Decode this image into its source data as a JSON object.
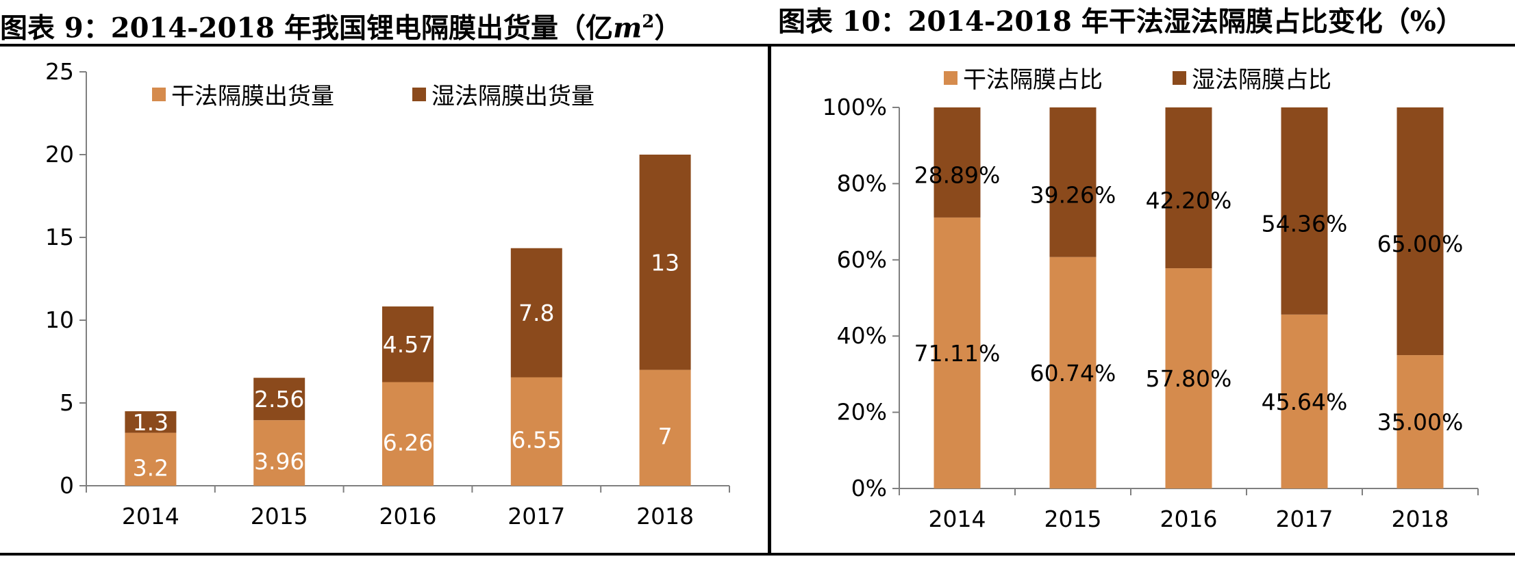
{
  "colors": {
    "dry": "#D58B4D",
    "wet": "#8B4A1C",
    "axis": "#7f7f7f"
  },
  "panels": {
    "left": {
      "title_prefix": "图表 9：2014-2018 年我国锂电隔膜出货量（亿",
      "title_unit": "m",
      "title_sup": "2",
      "title_suffix": "）"
    },
    "right": {
      "title": "图表 10：2014-2018 年干法湿法隔膜占比变化（%）"
    }
  },
  "chart_data": [
    {
      "type": "bar",
      "stacked": true,
      "categories": [
        "2014",
        "2015",
        "2016",
        "2017",
        "2018"
      ],
      "series": [
        {
          "name": "干法隔膜出货量",
          "values": [
            3.2,
            3.96,
            6.26,
            6.55,
            7
          ],
          "labels": [
            "3.2",
            "3.96",
            "6.26",
            "6.55",
            "7"
          ],
          "color": "#D58B4D"
        },
        {
          "name": "湿法隔膜出货量",
          "values": [
            1.3,
            2.56,
            4.57,
            7.8,
            13
          ],
          "labels": [
            "1.3",
            "2.56",
            "4.57",
            "7.8",
            "13"
          ],
          "color": "#8B4A1C"
        }
      ],
      "ylim": [
        0,
        25
      ],
      "yticks": [
        "0",
        "5",
        "10",
        "15",
        "20",
        "25"
      ],
      "legend_position": "top",
      "grid": false
    },
    {
      "type": "bar",
      "stacked": true,
      "categories": [
        "2014",
        "2015",
        "2016",
        "2017",
        "2018"
      ],
      "series": [
        {
          "name": "干法隔膜占比",
          "values": [
            71.11,
            60.74,
            57.8,
            45.64,
            35.0
          ],
          "labels": [
            "71.11%",
            "60.74%",
            "57.80%",
            "45.64%",
            "35.00%"
          ],
          "color": "#D58B4D"
        },
        {
          "name": "湿法隔膜占比",
          "values": [
            28.89,
            39.26,
            42.2,
            54.36,
            65.0
          ],
          "labels": [
            "28.89%",
            "39.26%",
            "42.20%",
            "54.36%",
            "65.00%"
          ],
          "color": "#8B4A1C"
        }
      ],
      "ylim": [
        0,
        100
      ],
      "yticks": [
        "0%",
        "20%",
        "40%",
        "60%",
        "80%",
        "100%"
      ],
      "legend_position": "top",
      "grid": false
    }
  ]
}
